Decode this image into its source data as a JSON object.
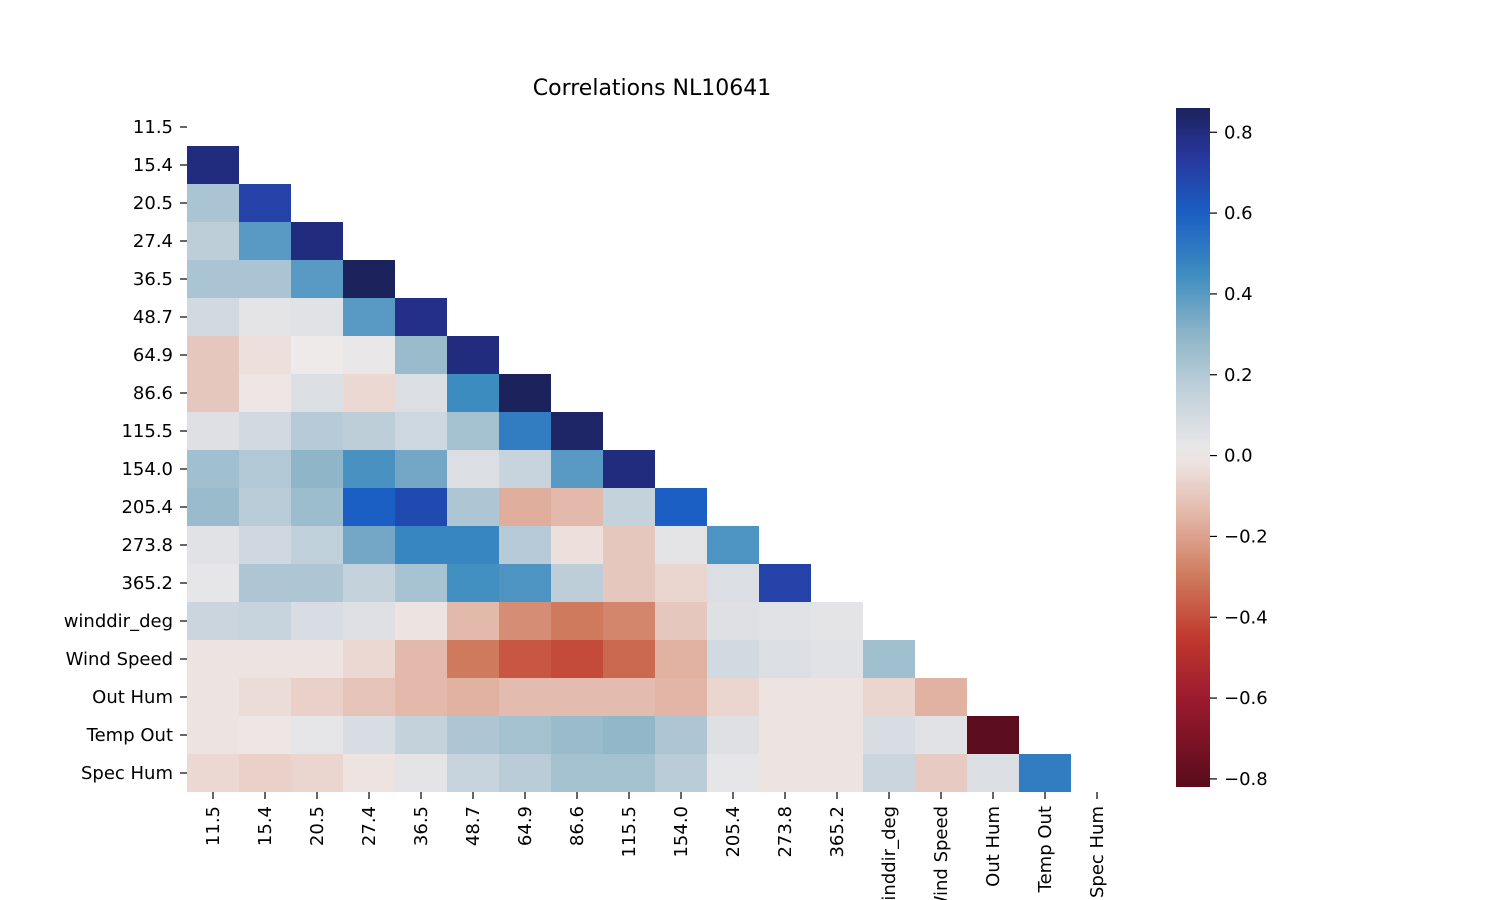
{
  "chart_data": {
    "type": "heatmap",
    "title": "Correlations NL10641",
    "labels": [
      "11.5",
      "15.4",
      "20.5",
      "27.4",
      "36.5",
      "48.7",
      "64.9",
      "86.6",
      "115.5",
      "154.0",
      "205.4",
      "273.8",
      "365.2",
      "winddir_deg",
      "Wind Speed",
      "Out Hum",
      "Temp Out",
      "Spec Hum"
    ],
    "mask": "upper triangle incl. diagonal",
    "values": [
      [],
      [
        0.8
      ],
      [
        0.22,
        0.7
      ],
      [
        0.17,
        0.4,
        0.8
      ],
      [
        0.22,
        0.22,
        0.4,
        0.86
      ],
      [
        0.1,
        0.04,
        0.05,
        0.4,
        0.78
      ],
      [
        -0.1,
        -0.03,
        0.0,
        0.02,
        0.27,
        0.8
      ],
      [
        -0.1,
        -0.01,
        0.07,
        -0.05,
        0.07,
        0.45,
        0.86
      ],
      [
        0.06,
        0.1,
        0.19,
        0.17,
        0.12,
        0.24,
        0.5,
        0.84
      ],
      [
        0.25,
        0.2,
        0.3,
        0.43,
        0.35,
        0.07,
        0.14,
        0.4,
        0.8
      ],
      [
        0.27,
        0.18,
        0.26,
        0.6,
        0.67,
        0.21,
        -0.17,
        -0.14,
        0.15,
        0.6
      ],
      [
        0.05,
        0.11,
        0.16,
        0.35,
        0.47,
        0.47,
        0.19,
        -0.03,
        -0.1,
        0.04,
        0.42
      ],
      [
        0.03,
        0.21,
        0.21,
        0.15,
        0.23,
        0.44,
        0.42,
        0.17,
        -0.1,
        -0.06,
        0.07,
        0.7
      ],
      [
        0.13,
        0.14,
        0.08,
        0.06,
        -0.02,
        -0.14,
        -0.25,
        -0.3,
        -0.27,
        -0.1,
        0.06,
        0.05,
        0.04
      ],
      [
        -0.02,
        -0.02,
        -0.02,
        -0.05,
        -0.14,
        -0.3,
        -0.38,
        -0.41,
        -0.34,
        -0.16,
        0.1,
        0.07,
        0.05,
        0.25
      ],
      [
        -0.02,
        -0.04,
        -0.07,
        -0.11,
        -0.14,
        -0.16,
        -0.13,
        -0.13,
        -0.13,
        -0.15,
        -0.06,
        -0.02,
        -0.02,
        -0.06,
        -0.16
      ],
      [
        -0.02,
        -0.01,
        0.03,
        0.08,
        0.15,
        0.21,
        0.24,
        0.27,
        0.29,
        0.21,
        0.06,
        -0.02,
        -0.02,
        0.08,
        0.05,
        -0.81
      ],
      [
        -0.05,
        -0.07,
        -0.06,
        -0.02,
        0.04,
        0.14,
        0.18,
        0.24,
        0.24,
        0.18,
        0.03,
        -0.02,
        -0.02,
        0.13,
        -0.09,
        0.07,
        0.5
      ]
    ],
    "colorbar": {
      "vmin": -0.82,
      "vmax": 0.86,
      "ticks": [
        "0.8",
        "0.6",
        "0.4",
        "0.2",
        "0.0",
        "−0.2",
        "−0.4",
        "−0.6",
        "−0.8"
      ],
      "tick_values": [
        0.8,
        0.6,
        0.4,
        0.2,
        0.0,
        -0.2,
        -0.4,
        -0.6,
        -0.8
      ]
    },
    "colormap": [
      [
        -1.0,
        "#3b0a18"
      ],
      [
        -0.8,
        "#5e0d1e"
      ],
      [
        -0.6,
        "#9c1a2e"
      ],
      [
        -0.45,
        "#c0392e"
      ],
      [
        -0.3,
        "#cf7a5c"
      ],
      [
        -0.15,
        "#e2b5a6"
      ],
      [
        0.0,
        "#efeaea"
      ],
      [
        0.15,
        "#c4d2dc"
      ],
      [
        0.3,
        "#8eb5c8"
      ],
      [
        0.45,
        "#3d8cc0"
      ],
      [
        0.6,
        "#1b5ec4"
      ],
      [
        0.75,
        "#28349a"
      ],
      [
        0.9,
        "#161b45"
      ]
    ]
  }
}
